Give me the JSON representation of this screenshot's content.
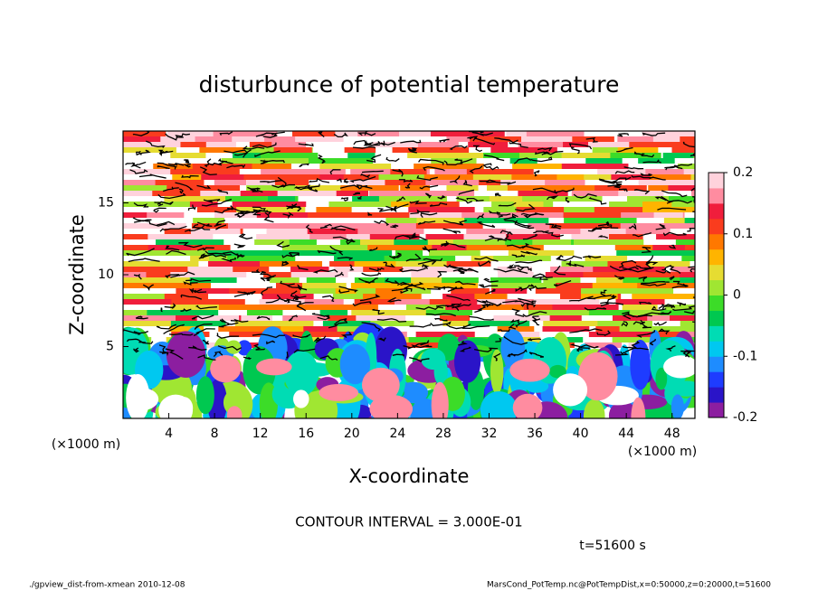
{
  "chart_data": {
    "type": "contour",
    "title": "disturbunce of potential temperature",
    "x_label": "X-coordinate",
    "y_label": "Z-coordinate",
    "x_unit": "(×1000 m)",
    "xlim": [
      0,
      50
    ],
    "xticks": [
      4,
      8,
      12,
      16,
      20,
      24,
      28,
      32,
      36,
      40,
      44,
      48
    ],
    "ylim": [
      0,
      20
    ],
    "yticks": [
      5,
      10,
      15
    ],
    "colorbar_lim": [
      -0.2,
      0.2
    ],
    "colorbar_ticks": [
      -0.2,
      -0.1,
      0,
      0.1,
      0.2
    ],
    "colors": [
      "#8c1ea0",
      "#2a14c8",
      "#1e3cff",
      "#1e8cff",
      "#00c8f0",
      "#00dcb4",
      "#00c850",
      "#3cdc28",
      "#a0e632",
      "#e6dc32",
      "#ffb400",
      "#ff7800",
      "#fa3c1e",
      "#f01e3c",
      "#ff8ca0",
      "#ffd2dc"
    ],
    "contour_interval": "CONTOUR INTERVAL = 3.000E-01",
    "time_label": "t=51600 s",
    "footer_left": "./gpview_dist-from-xmean  2010-12-08",
    "footer_right": "MarsCond_PotTemp.nc@PotTempDist,x=0:50000,z=0:20000,t=51600"
  }
}
